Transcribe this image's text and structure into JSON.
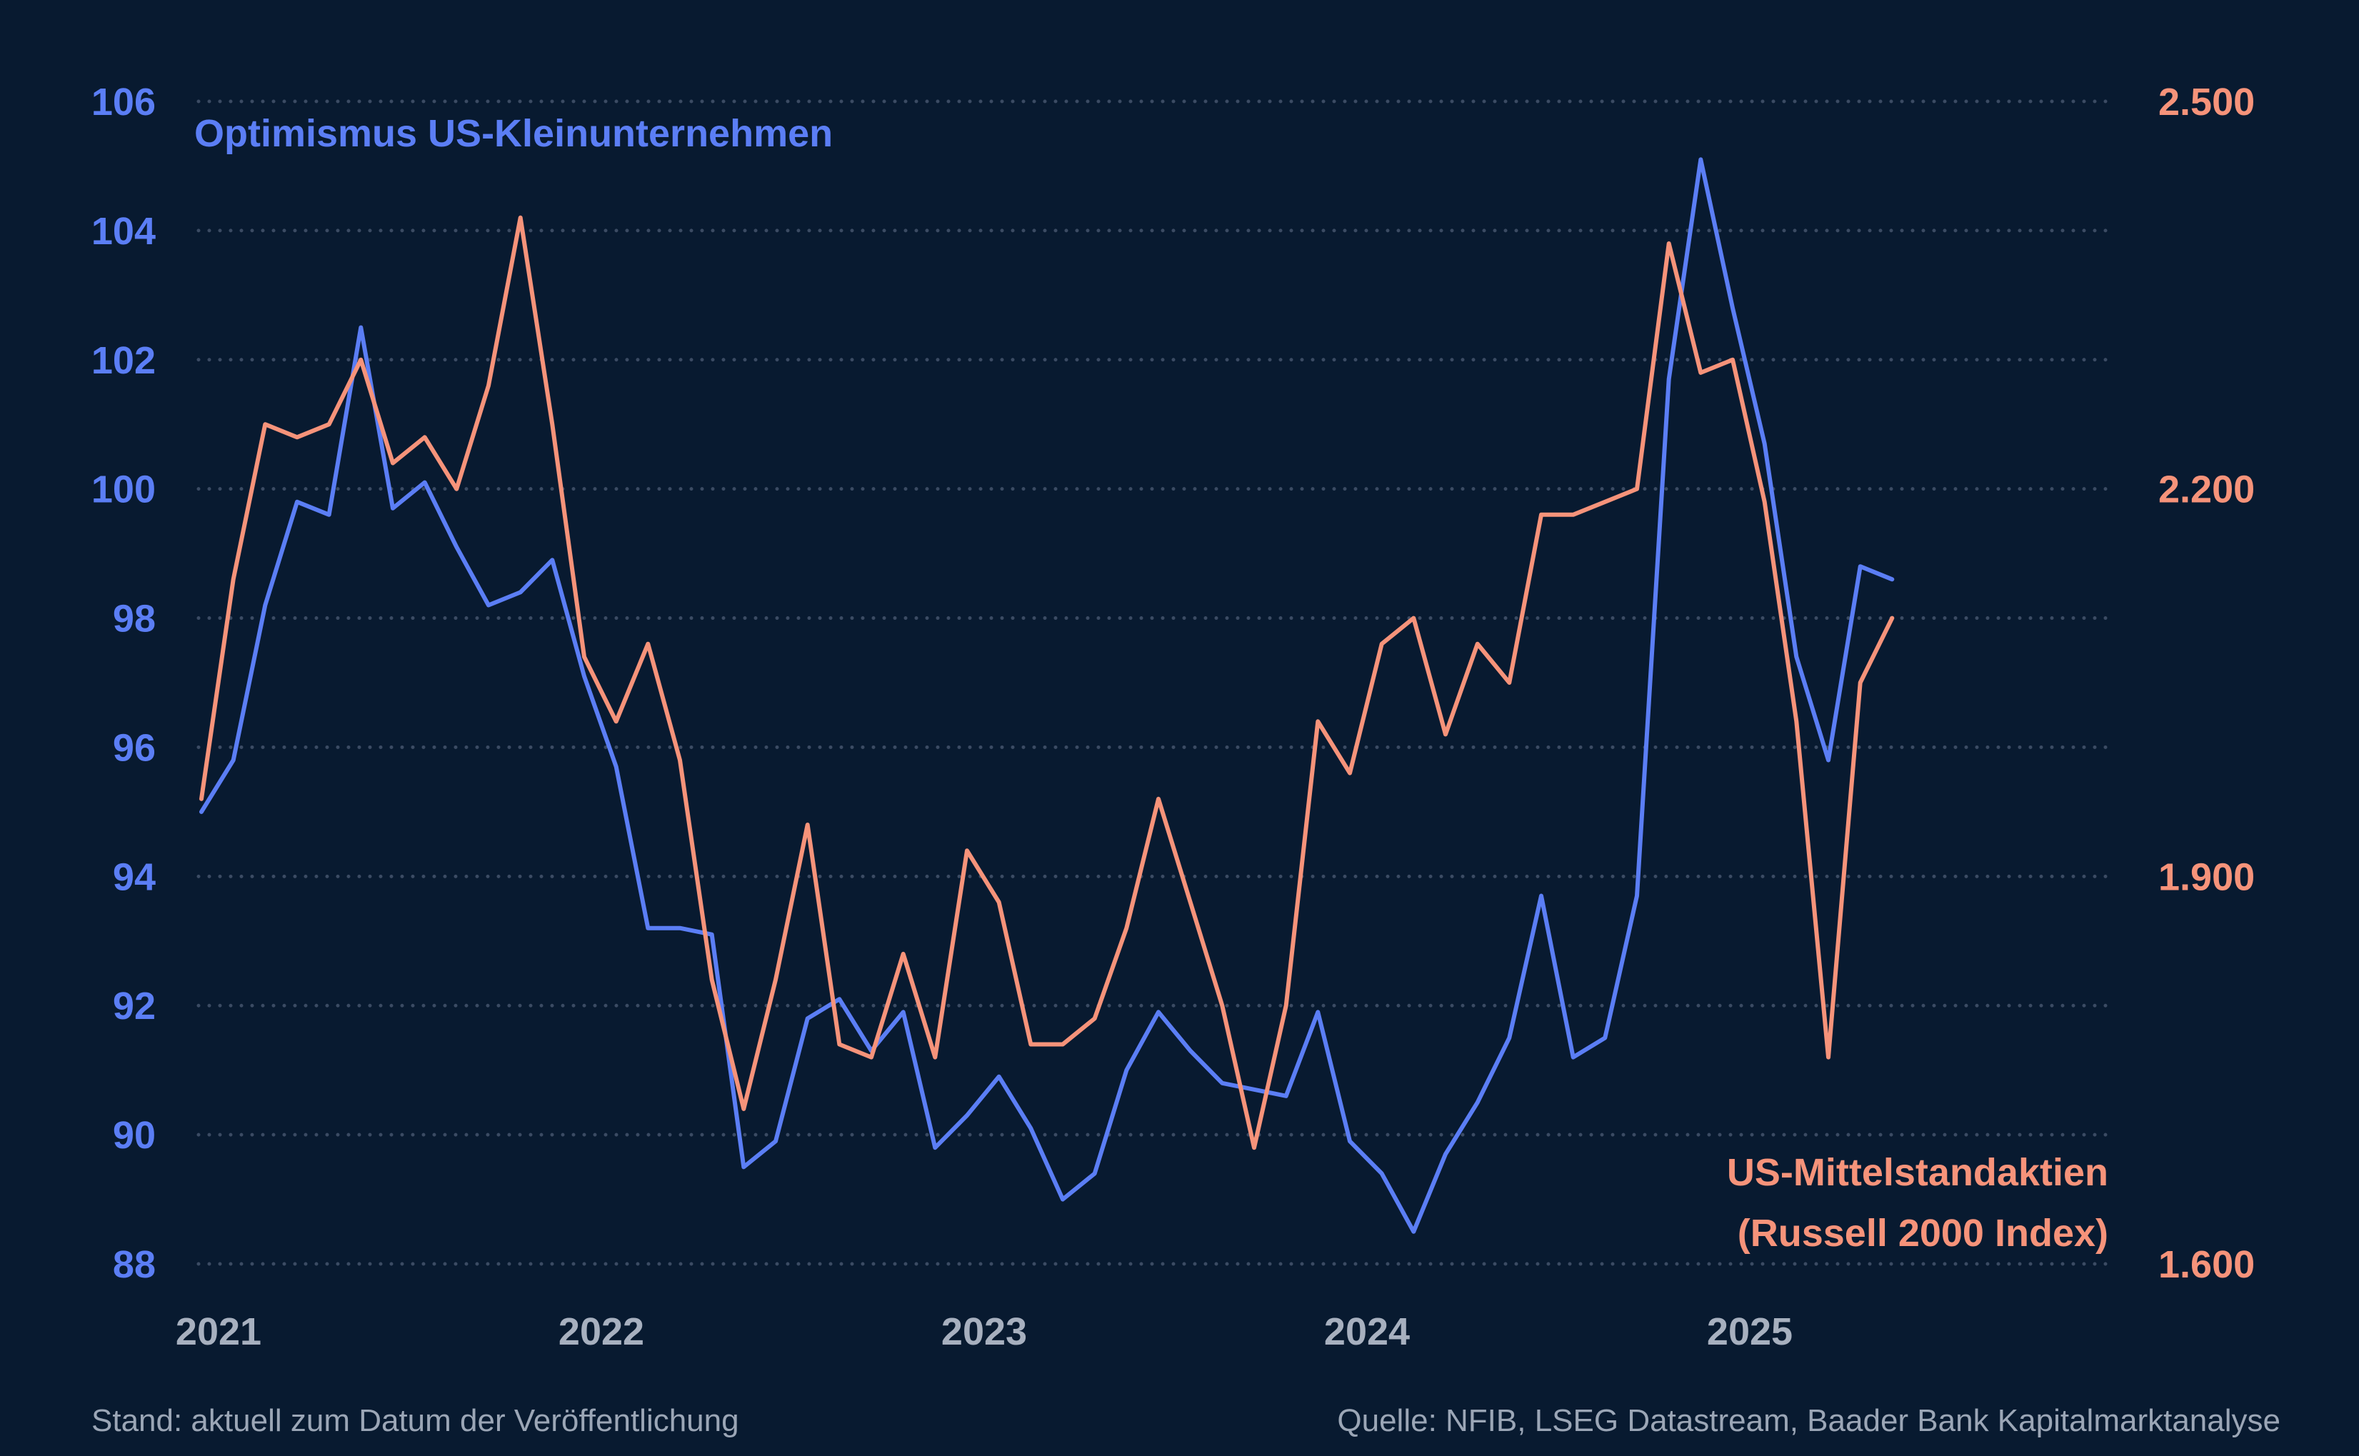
{
  "chart_data": {
    "type": "line",
    "title": "",
    "x_tick_labels": [
      "2021",
      "2022",
      "2023",
      "2024",
      "2025"
    ],
    "left_axis": {
      "ticks": [
        "106",
        "104",
        "102",
        "100",
        "98",
        "96",
        "94",
        "92",
        "90",
        "88"
      ],
      "range": [
        88,
        106
      ],
      "color": "#5b7ef5"
    },
    "right_axis": {
      "ticks": [
        "2.500",
        "2.200",
        "1.900",
        "1.600"
      ],
      "range": [
        1600,
        2500
      ],
      "color": "#f6937a"
    },
    "grid": "horizontal dotted",
    "series": [
      {
        "name": "Optimismus US-Kleinunternehmen",
        "axis": "left",
        "color": "#5b7ef5",
        "x": [
          "2021-01",
          "2021-02",
          "2021-03",
          "2021-04",
          "2021-05",
          "2021-06",
          "2021-07",
          "2021-08",
          "2021-09",
          "2021-10",
          "2021-11",
          "2021-12",
          "2022-01",
          "2022-02",
          "2022-03",
          "2022-04",
          "2022-05",
          "2022-06",
          "2022-07",
          "2022-08",
          "2022-09",
          "2022-10",
          "2022-11",
          "2022-12",
          "2023-01",
          "2023-02",
          "2023-03",
          "2023-04",
          "2023-05",
          "2023-06",
          "2023-07",
          "2023-08",
          "2023-09",
          "2023-10",
          "2023-11",
          "2023-12",
          "2024-01",
          "2024-02",
          "2024-03",
          "2024-04",
          "2024-05",
          "2024-06",
          "2024-07",
          "2024-08",
          "2024-09",
          "2024-10",
          "2024-11",
          "2024-12",
          "2025-01",
          "2025-02",
          "2025-03",
          "2025-04",
          "2025-05",
          "2025-06"
        ],
        "y": [
          95.0,
          95.8,
          98.2,
          99.8,
          99.6,
          102.5,
          99.7,
          100.1,
          99.1,
          98.2,
          98.4,
          98.9,
          97.1,
          95.7,
          93.2,
          93.2,
          93.1,
          89.5,
          89.9,
          91.8,
          92.1,
          91.3,
          91.9,
          89.8,
          90.3,
          90.9,
          90.1,
          89.0,
          89.4,
          91.0,
          91.9,
          91.3,
          90.8,
          90.7,
          90.6,
          91.9,
          89.9,
          89.4,
          88.5,
          89.7,
          90.5,
          91.5,
          93.7,
          91.2,
          91.5,
          93.7,
          101.7,
          105.1,
          102.8,
          100.7,
          97.4,
          95.8,
          98.8,
          98.6
        ]
      },
      {
        "name": "US-Mittelstandaktien (Russell 2000 Index)",
        "axis": "right",
        "color": "#f6937a",
        "x": [
          "2021-01",
          "2021-02",
          "2021-03",
          "2021-04",
          "2021-05",
          "2021-06",
          "2021-07",
          "2021-08",
          "2021-09",
          "2021-10",
          "2021-11",
          "2021-12",
          "2022-01",
          "2022-02",
          "2022-03",
          "2022-04",
          "2022-05",
          "2022-06",
          "2022-07",
          "2022-08",
          "2022-09",
          "2022-10",
          "2022-11",
          "2022-12",
          "2023-01",
          "2023-02",
          "2023-03",
          "2023-04",
          "2023-05",
          "2023-06",
          "2023-07",
          "2023-08",
          "2023-09",
          "2023-10",
          "2023-11",
          "2023-12",
          "2024-01",
          "2024-02",
          "2024-03",
          "2024-04",
          "2024-05",
          "2024-06",
          "2024-07",
          "2024-08",
          "2024-09",
          "2024-10",
          "2024-11",
          "2024-12",
          "2025-01",
          "2025-02",
          "2025-03",
          "2025-04",
          "2025-05",
          "2025-06"
        ],
        "y": [
          1960,
          2130,
          2250,
          2240,
          2250,
          2300,
          2220,
          2240,
          2200,
          2280,
          2410,
          2250,
          2070,
          2020,
          2080,
          1990,
          1820,
          1720,
          1820,
          1940,
          1770,
          1760,
          1840,
          1760,
          1920,
          1880,
          1770,
          1770,
          1790,
          1860,
          1960,
          1880,
          1800,
          1690,
          1800,
          2020,
          1980,
          2080,
          2100,
          2010,
          2080,
          2050,
          2180,
          2180,
          2190,
          2200,
          2390,
          2290,
          2300,
          2190,
          2020,
          1760,
          2050,
          2100
        ]
      }
    ]
  },
  "labels": {
    "left_series": "Optimismus US-Kleinunternehmen",
    "right_series_line1": "US-Mittelstandaktien",
    "right_series_line2": "(Russell 2000 Index)"
  },
  "footer": {
    "left": "Stand: aktuell zum Datum der Veröffentlichung",
    "right": "Quelle: NFIB, LSEG Datastream, Baader Bank Kapitalmarktanalyse"
  }
}
